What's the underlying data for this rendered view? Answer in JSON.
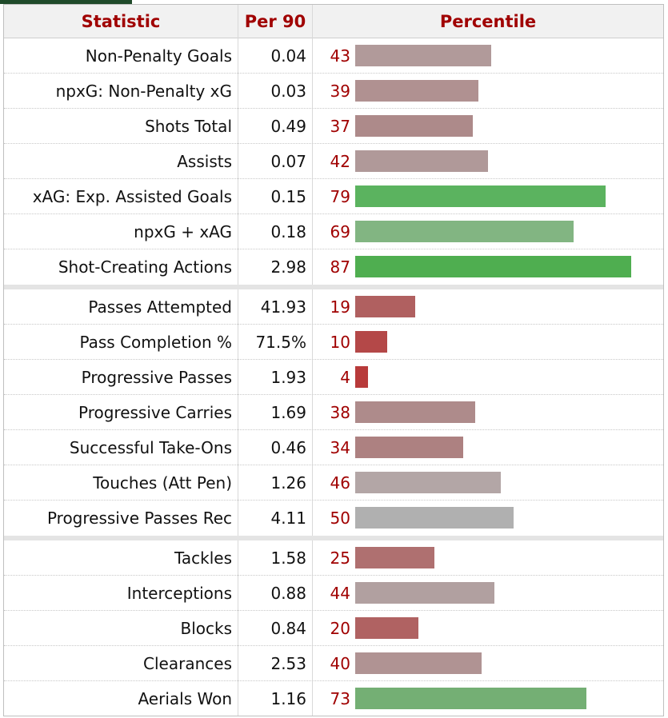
{
  "header": {
    "statistic": "Statistic",
    "per90": "Per 90",
    "percentile": "Percentile"
  },
  "groups": [
    {
      "rows": [
        {
          "statistic": "Non-Penalty Goals",
          "per90": "0.04",
          "percentile": 43,
          "color": "#b19a9a"
        },
        {
          "statistic": "npxG: Non-Penalty xG",
          "per90": "0.03",
          "percentile": 39,
          "color": "#b09191"
        },
        {
          "statistic": "Shots Total",
          "per90": "0.49",
          "percentile": 37,
          "color": "#ad8a8a"
        },
        {
          "statistic": "Assists",
          "per90": "0.07",
          "percentile": 42,
          "color": "#b09999"
        },
        {
          "statistic": "xAG: Exp. Assisted Goals",
          "per90": "0.15",
          "percentile": 79,
          "color": "#5bb35f"
        },
        {
          "statistic": "npxG + xAG",
          "per90": "0.18",
          "percentile": 69,
          "color": "#82b582"
        },
        {
          "statistic": "Shot-Creating Actions",
          "per90": "2.98",
          "percentile": 87,
          "color": "#4fae50"
        }
      ]
    },
    {
      "rows": [
        {
          "statistic": "Passes Attempted",
          "per90": "41.93",
          "percentile": 19,
          "color": "#b06060"
        },
        {
          "statistic": "Pass Completion %",
          "per90": "71.5%",
          "percentile": 10,
          "color": "#b44848"
        },
        {
          "statistic": "Progressive Passes",
          "per90": "1.93",
          "percentile": 4,
          "color": "#b83a3a"
        },
        {
          "statistic": "Progressive Carries",
          "per90": "1.69",
          "percentile": 38,
          "color": "#ae8b8b"
        },
        {
          "statistic": "Successful Take-Ons",
          "per90": "0.46",
          "percentile": 34,
          "color": "#ad8181"
        },
        {
          "statistic": "Touches (Att Pen)",
          "per90": "1.26",
          "percentile": 46,
          "color": "#b3a6a6"
        },
        {
          "statistic": "Progressive Passes Rec",
          "per90": "4.11",
          "percentile": 50,
          "color": "#b0b0b0"
        }
      ]
    },
    {
      "rows": [
        {
          "statistic": "Tackles",
          "per90": "1.58",
          "percentile": 25,
          "color": "#af7070"
        },
        {
          "statistic": "Interceptions",
          "per90": "0.88",
          "percentile": 44,
          "color": "#b1a0a0"
        },
        {
          "statistic": "Blocks",
          "per90": "0.84",
          "percentile": 20,
          "color": "#b06262"
        },
        {
          "statistic": "Clearances",
          "per90": "2.53",
          "percentile": 40,
          "color": "#b09393"
        },
        {
          "statistic": "Aerials Won",
          "per90": "1.16",
          "percentile": 73,
          "color": "#74af74"
        }
      ]
    }
  ]
}
